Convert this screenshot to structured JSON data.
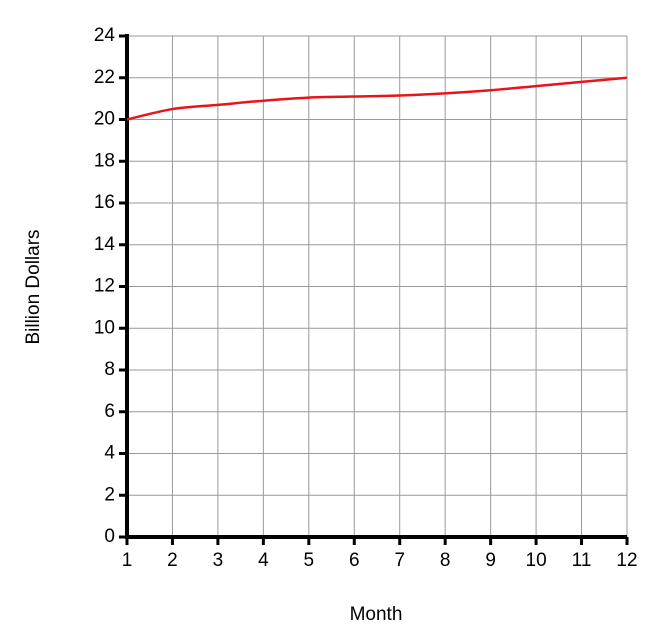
{
  "chart_data": {
    "type": "line",
    "x_label": "Month",
    "y_label": "Billion Dollars",
    "x": [
      1,
      2,
      3,
      4,
      5,
      6,
      7,
      8,
      9,
      10,
      11,
      12
    ],
    "series": [
      {
        "color": "#e8141c",
        "values": [
          20,
          20.5,
          20.7,
          20.9,
          21.05,
          21.1,
          21.15,
          21.25,
          21.4,
          21.6,
          21.8,
          22
        ]
      }
    ],
    "xlim": [
      1,
      12
    ],
    "xticks": [
      1,
      2,
      3,
      4,
      5,
      6,
      7,
      8,
      9,
      10,
      11,
      12
    ],
    "ylim": [
      0,
      24
    ],
    "yticks": [
      0,
      2,
      4,
      6,
      8,
      10,
      12,
      14,
      16,
      18,
      20,
      22,
      24
    ],
    "grid": true
  }
}
